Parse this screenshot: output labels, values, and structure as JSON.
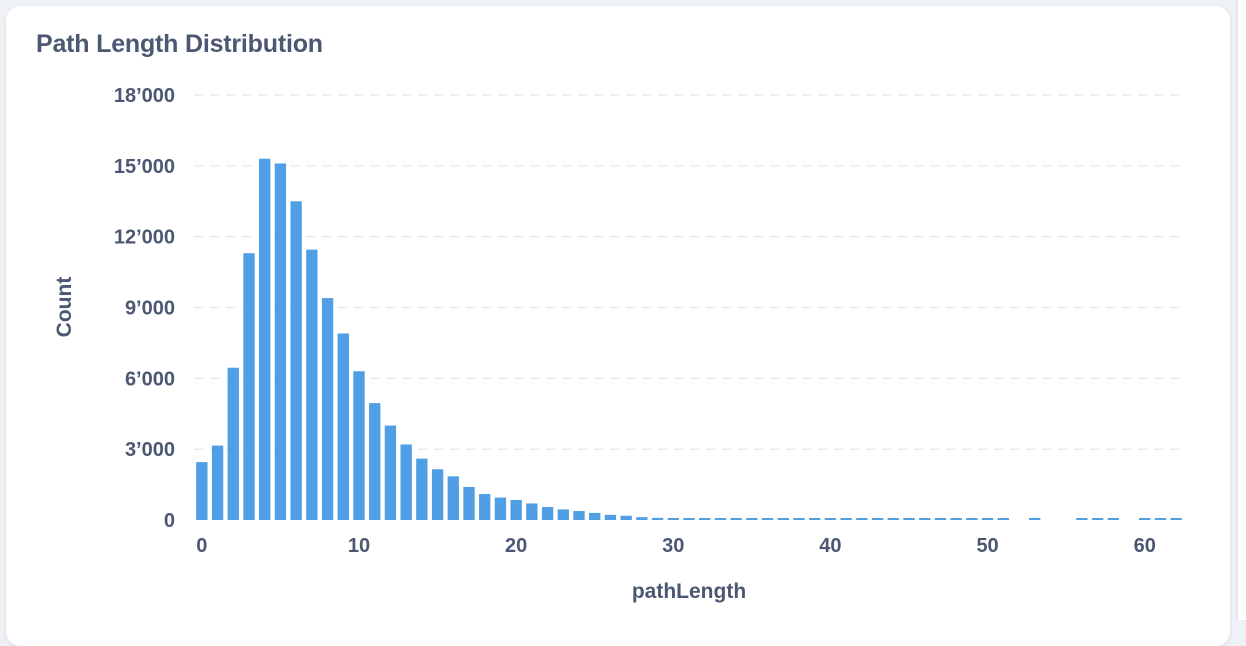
{
  "card": {
    "title": "Path Length Distribution"
  },
  "chart_data": {
    "type": "bar",
    "title": "Path Length Distribution",
    "xlabel": "pathLength",
    "ylabel": "Count",
    "xlim": [
      -0.5,
      62.5
    ],
    "ylim": [
      0,
      18000
    ],
    "x_ticks": [
      0,
      10,
      20,
      30,
      40,
      50,
      60
    ],
    "y_ticks": [
      0,
      3000,
      6000,
      9000,
      12000,
      15000,
      18000
    ],
    "y_tick_labels": [
      "0",
      "3’000",
      "6’000",
      "9’000",
      "12’000",
      "15’000",
      "18’000"
    ],
    "grid": true,
    "bar_color": "#509ee3",
    "x": [
      0,
      1,
      2,
      3,
      4,
      5,
      6,
      7,
      8,
      9,
      10,
      11,
      12,
      13,
      14,
      15,
      16,
      17,
      18,
      19,
      20,
      21,
      22,
      23,
      24,
      25,
      26,
      27,
      28,
      29,
      30,
      31,
      32,
      33,
      34,
      35,
      36,
      37,
      38,
      39,
      40,
      41,
      42,
      43,
      44,
      45,
      46,
      47,
      48,
      49,
      50,
      51,
      53,
      56,
      57,
      58,
      60,
      61,
      62
    ],
    "values": [
      2450,
      3150,
      6450,
      11300,
      15300,
      15100,
      13500,
      11450,
      9400,
      7900,
      6300,
      4950,
      4000,
      3200,
      2600,
      2150,
      1850,
      1400,
      1100,
      950,
      850,
      700,
      550,
      450,
      380,
      300,
      220,
      180,
      120,
      90,
      70,
      60,
      50,
      45,
      40,
      35,
      30,
      28,
      25,
      22,
      20,
      18,
      16,
      15,
      14,
      13,
      12,
      11,
      10,
      10,
      9,
      9,
      8,
      8,
      8,
      8,
      8,
      8,
      8
    ]
  }
}
